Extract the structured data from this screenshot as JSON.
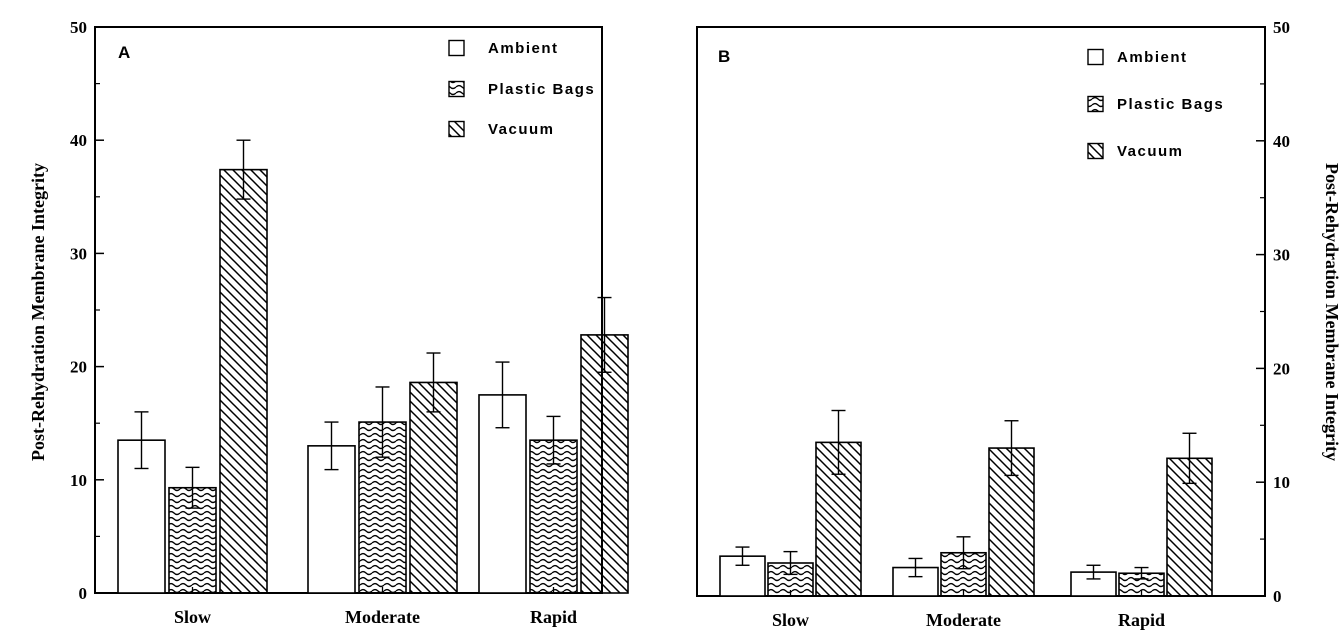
{
  "chart_data": [
    {
      "type": "bar",
      "panel_label": "A",
      "categories": [
        "Slow",
        "Moderate",
        "Rapid"
      ],
      "ylabel": "Post-Rehydration Membrane Integrity",
      "ylabel_side": "left",
      "ylim": [
        0,
        50
      ],
      "yticks": [
        "0",
        "10",
        "20",
        "30",
        "40",
        "50"
      ],
      "grid": false,
      "legend_position": "top-right",
      "series": [
        {
          "name": "Ambient",
          "pattern": "none",
          "values": [
            13.5,
            13.0,
            17.5
          ],
          "errors": [
            2.5,
            2.1,
            2.9
          ]
        },
        {
          "name": "Plastic Bags",
          "pattern": "wavy",
          "values": [
            9.3,
            15.1,
            13.5
          ],
          "errors": [
            1.8,
            3.1,
            2.1
          ]
        },
        {
          "name": "Vacuum",
          "pattern": "diagonal",
          "values": [
            37.4,
            18.6,
            22.8
          ],
          "errors": [
            2.6,
            2.6,
            3.3
          ]
        }
      ]
    },
    {
      "type": "bar",
      "panel_label": "B",
      "categories": [
        "Slow",
        "Moderate",
        "Rapid"
      ],
      "ylabel": "Post-Rehydration Membrane Integrity",
      "ylabel_side": "right",
      "ylim": [
        0,
        50
      ],
      "yticks": [
        "0",
        "10",
        "20",
        "30",
        "40",
        "50"
      ],
      "grid": false,
      "legend_position": "top-right",
      "series": [
        {
          "name": "Ambient",
          "pattern": "none",
          "values": [
            3.5,
            2.5,
            2.1
          ],
          "errors": [
            0.8,
            0.8,
            0.6
          ]
        },
        {
          "name": "Plastic Bags",
          "pattern": "wavy",
          "values": [
            2.9,
            3.8,
            2.0
          ],
          "errors": [
            1.0,
            1.4,
            0.5
          ]
        },
        {
          "name": "Vacuum",
          "pattern": "diagonal",
          "values": [
            13.5,
            13.0,
            12.1
          ],
          "errors": [
            2.8,
            2.4,
            2.2
          ]
        }
      ]
    }
  ]
}
